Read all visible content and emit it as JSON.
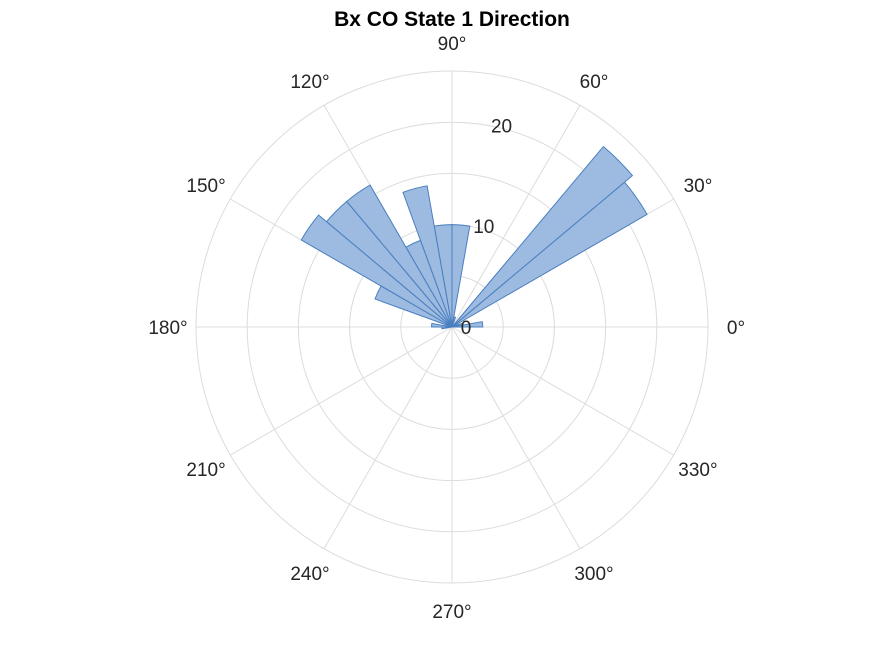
{
  "chart_data": {
    "type": "polar-histogram",
    "title": "Bx  CO State 1 Direction",
    "theta_ticks": [
      "0°",
      "30°",
      "60°",
      "90°",
      "120°",
      "150°",
      "180°",
      "210°",
      "240°",
      "270°",
      "300°",
      "330°"
    ],
    "theta_tick_values_deg": [
      0,
      30,
      60,
      90,
      120,
      150,
      180,
      210,
      240,
      270,
      300,
      330
    ],
    "r_ticks": [
      "0",
      "10",
      "20"
    ],
    "r_tick_values": [
      0,
      10,
      20
    ],
    "rlim": [
      0,
      25
    ],
    "bin_width_deg": 10,
    "bins": [
      {
        "start_deg": 0,
        "end_deg": 10,
        "value": 3
      },
      {
        "start_deg": 10,
        "end_deg": 20,
        "value": 1
      },
      {
        "start_deg": 20,
        "end_deg": 30,
        "value": 0
      },
      {
        "start_deg": 30,
        "end_deg": 40,
        "value": 22
      },
      {
        "start_deg": 40,
        "end_deg": 50,
        "value": 23
      },
      {
        "start_deg": 50,
        "end_deg": 60,
        "value": 0
      },
      {
        "start_deg": 60,
        "end_deg": 70,
        "value": 0
      },
      {
        "start_deg": 70,
        "end_deg": 80,
        "value": 1
      },
      {
        "start_deg": 80,
        "end_deg": 90,
        "value": 10
      },
      {
        "start_deg": 90,
        "end_deg": 100,
        "value": 10
      },
      {
        "start_deg": 100,
        "end_deg": 110,
        "value": 14
      },
      {
        "start_deg": 110,
        "end_deg": 120,
        "value": 9
      },
      {
        "start_deg": 120,
        "end_deg": 130,
        "value": 16
      },
      {
        "start_deg": 130,
        "end_deg": 140,
        "value": 16
      },
      {
        "start_deg": 140,
        "end_deg": 150,
        "value": 17
      },
      {
        "start_deg": 150,
        "end_deg": 160,
        "value": 8
      },
      {
        "start_deg": 160,
        "end_deg": 170,
        "value": 0
      },
      {
        "start_deg": 170,
        "end_deg": 180,
        "value": 2
      },
      {
        "start_deg": 180,
        "end_deg": 190,
        "value": 1
      }
    ],
    "grid": true,
    "colors": {
      "fill": "#9dbbe0",
      "edge": "#4a7fc0",
      "grid": "#dcdcdc",
      "text": "#262626"
    }
  }
}
